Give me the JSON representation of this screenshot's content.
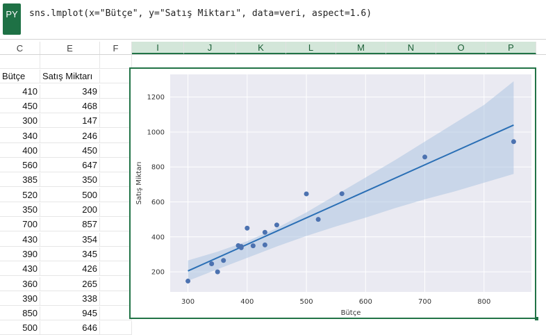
{
  "formula_bar": {
    "badge": "PY",
    "code": "sns.lmplot(x=\"Bütçe\", y=\"Satış Miktarı\", data=veri, aspect=1.6)"
  },
  "columns": [
    "C",
    "E",
    "F",
    "I",
    "J",
    "K",
    "L",
    "M",
    "N",
    "O",
    "P"
  ],
  "table": {
    "headers": [
      "Bütçe",
      "Satış Miktarı"
    ],
    "rows": [
      [
        "410",
        "349"
      ],
      [
        "450",
        "468"
      ],
      [
        "300",
        "147"
      ],
      [
        "340",
        "246"
      ],
      [
        "400",
        "450"
      ],
      [
        "560",
        "647"
      ],
      [
        "385",
        "350"
      ],
      [
        "520",
        "500"
      ],
      [
        "350",
        "200"
      ],
      [
        "700",
        "857"
      ],
      [
        "430",
        "354"
      ],
      [
        "390",
        "345"
      ],
      [
        "430",
        "426"
      ],
      [
        "360",
        "265"
      ],
      [
        "390",
        "338"
      ],
      [
        "850",
        "945"
      ],
      [
        "500",
        "646"
      ]
    ]
  },
  "chart_data": {
    "type": "scatter",
    "xlabel": "Bütçe",
    "ylabel": "Satış Miktarı",
    "xlim": [
      270,
      880
    ],
    "ylim": [
      85,
      1330
    ],
    "xticks": [
      300,
      400,
      500,
      600,
      700,
      800
    ],
    "yticks": [
      200,
      400,
      600,
      800,
      1000,
      1200
    ],
    "grid": true,
    "points": [
      [
        410,
        349
      ],
      [
        450,
        468
      ],
      [
        300,
        147
      ],
      [
        340,
        246
      ],
      [
        400,
        450
      ],
      [
        560,
        647
      ],
      [
        385,
        350
      ],
      [
        520,
        500
      ],
      [
        350,
        200
      ],
      [
        700,
        857
      ],
      [
        430,
        354
      ],
      [
        390,
        345
      ],
      [
        430,
        426
      ],
      [
        360,
        265
      ],
      [
        390,
        338
      ],
      [
        850,
        945
      ],
      [
        500,
        646
      ]
    ],
    "regression": {
      "x": [
        300,
        850
      ],
      "y": [
        205,
        1040
      ]
    },
    "ci_band": {
      "x": [
        300,
        350,
        400,
        450,
        500,
        550,
        600,
        650,
        700,
        750,
        800,
        850
      ],
      "upper": [
        265,
        315,
        375,
        450,
        540,
        640,
        740,
        840,
        945,
        1050,
        1155,
        1290
      ],
      "lower": [
        148,
        215,
        280,
        345,
        405,
        460,
        510,
        565,
        615,
        660,
        710,
        760
      ]
    },
    "colors": {
      "point": "#4c72b0",
      "line": "#2a6fb5",
      "band": "#a7c1e0",
      "plot_bg": "#eaeaf2",
      "grid": "#ffffff"
    }
  }
}
